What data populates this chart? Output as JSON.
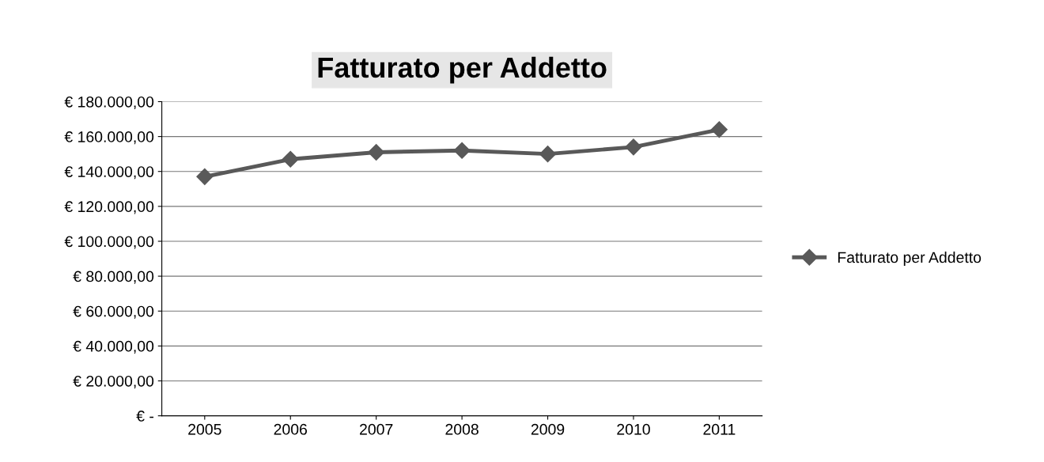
{
  "chart_data": {
    "type": "line",
    "title": "Fatturato per Addetto",
    "categories": [
      "2005",
      "2006",
      "2007",
      "2008",
      "2009",
      "2010",
      "2011"
    ],
    "series": [
      {
        "name": "Fatturato per Addetto",
        "color": "#595959",
        "values": [
          137000,
          147000,
          151000,
          152000,
          150000,
          154000,
          164000
        ]
      }
    ],
    "ylim": [
      0,
      180000
    ],
    "yticks": [
      {
        "value": 0,
        "label": "€ -"
      },
      {
        "value": 20000,
        "label": "€ 20.000,00"
      },
      {
        "value": 40000,
        "label": "€ 40.000,00"
      },
      {
        "value": 60000,
        "label": "€ 60.000,00"
      },
      {
        "value": 80000,
        "label": "€ 80.000,00"
      },
      {
        "value": 100000,
        "label": "€ 100.000,00"
      },
      {
        "value": 120000,
        "label": "€ 120.000,00"
      },
      {
        "value": 140000,
        "label": "€ 140.000,00"
      },
      {
        "value": 160000,
        "label": "€ 160.000,00"
      },
      {
        "value": 180000,
        "label": "€ 180.000,00"
      }
    ],
    "grid": "y",
    "legend": "right",
    "marker": "diamond",
    "line_style": "solid"
  }
}
